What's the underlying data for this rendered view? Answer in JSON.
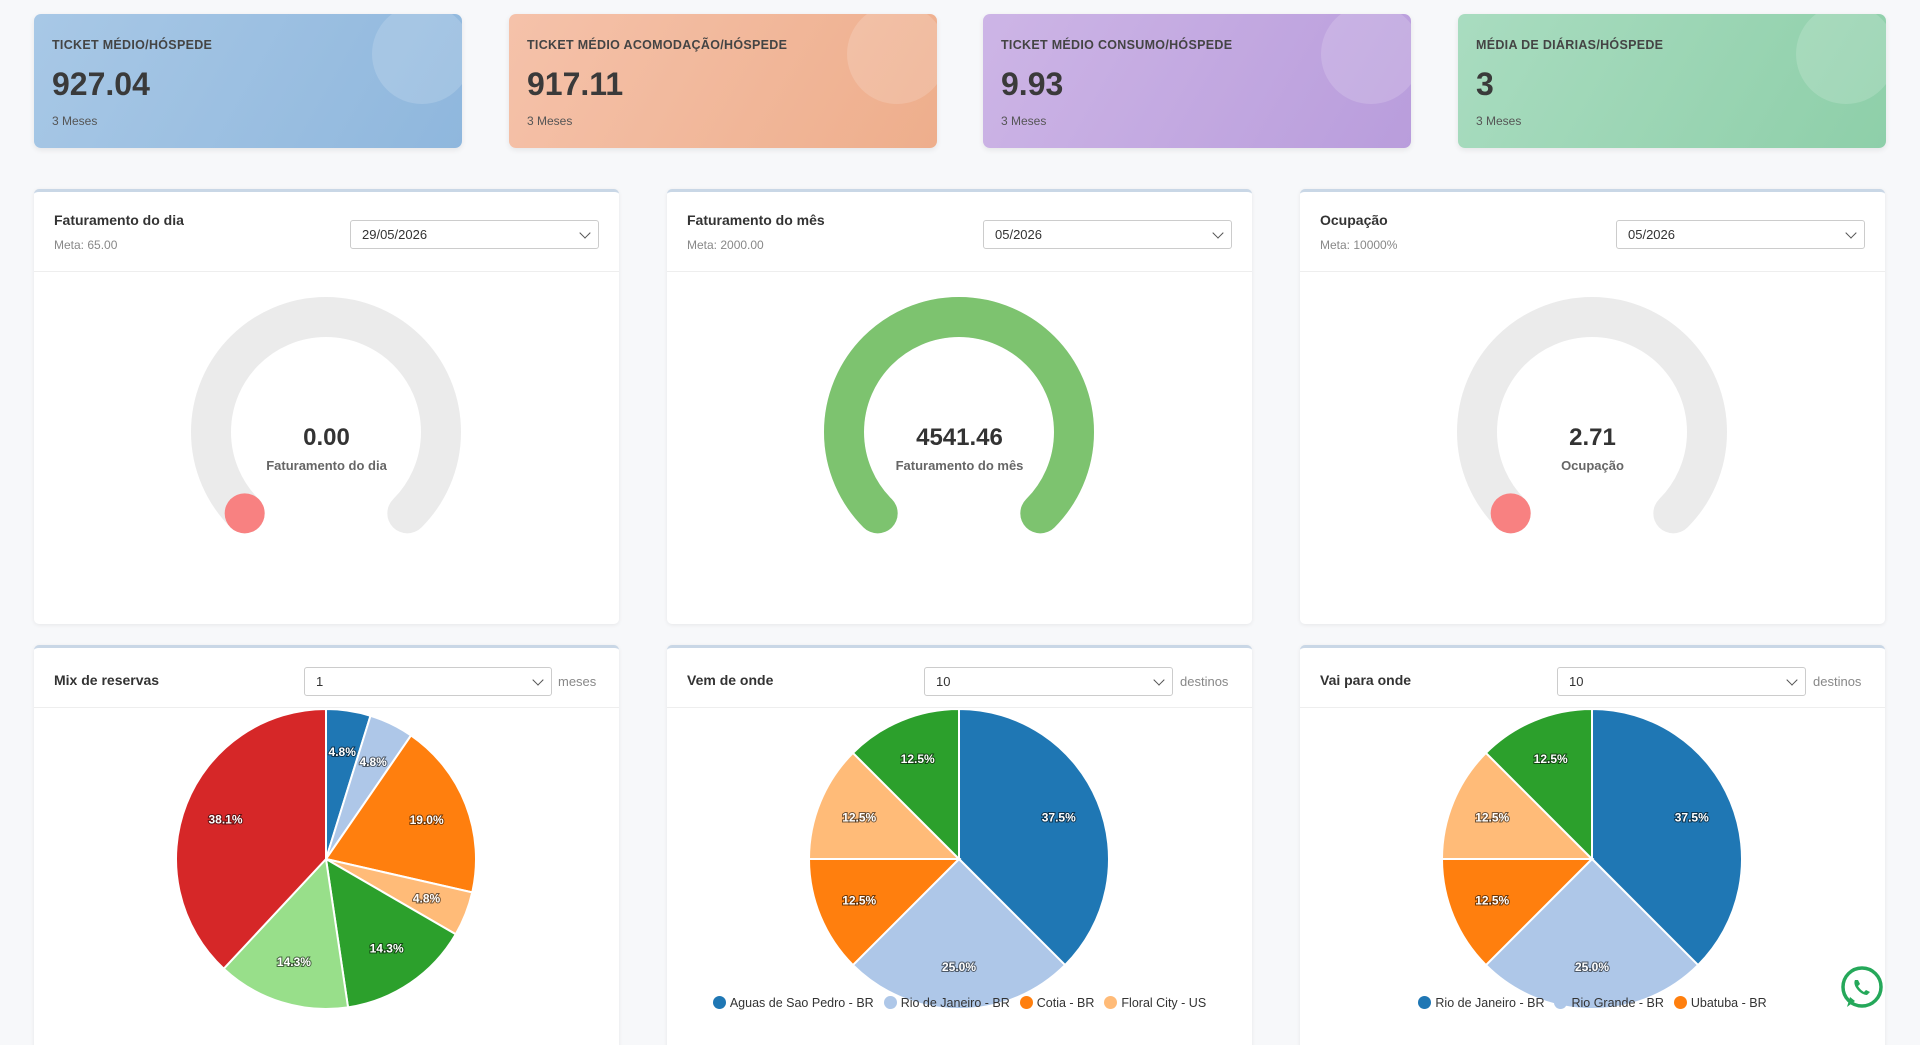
{
  "kpis": [
    {
      "title": "TICKET MÉDIO/HÓSPEDE",
      "value": "927.04",
      "sub": "3 Meses"
    },
    {
      "title": "TICKET MÉDIO ACOMODAÇÃO/HÓSPEDE",
      "value": "917.11",
      "sub": "3 Meses"
    },
    {
      "title": "TICKET MÉDIO CONSUMO/HÓSPEDE",
      "value": "9.93",
      "sub": "3 Meses"
    },
    {
      "title": "MÉDIA DE DIÁRIAS/HÓSPEDE",
      "value": "3",
      "sub": "3 Meses"
    }
  ],
  "gauges": [
    {
      "title": "Faturamento do dia",
      "meta": "Meta: 65.00",
      "select": "29/05/2026",
      "value": "0.00",
      "label": "Faturamento do dia",
      "fraction": 0,
      "color": "#f88181"
    },
    {
      "title": "Faturamento do mês",
      "meta": "Meta: 2000.00",
      "select": "05/2026",
      "value": "4541.46",
      "label": "Faturamento do mês",
      "fraction": 1,
      "color": "#7dc36f"
    },
    {
      "title": "Ocupação",
      "meta": "Meta: 10000%",
      "select": "05/2026",
      "value": "2.71",
      "label": "Ocupação",
      "fraction": 0,
      "color": "#f88181"
    }
  ],
  "pies": [
    {
      "title": "Mix de reservas",
      "select": "1",
      "unit": "meses"
    },
    {
      "title": "Vem de onde",
      "select": "10",
      "unit": "destinos"
    },
    {
      "title": "Vai para onde",
      "select": "10",
      "unit": "destinos"
    }
  ],
  "chart_data": [
    {
      "type": "pie",
      "values": [
        4.8,
        4.8,
        19.0,
        4.8,
        14.3,
        14.3,
        38.1
      ],
      "labels": [
        "4.8%",
        "4.8%",
        "19.0%",
        "4.8%",
        "14.3%",
        "14.3%",
        "38.1%"
      ],
      "colors": [
        "#1f77b4",
        "#aec7e8",
        "#ff7f0e",
        "#ffbb78",
        "#2ca02c",
        "#98df8a",
        "#d62728"
      ],
      "legend": []
    },
    {
      "type": "pie",
      "values": [
        37.5,
        25.0,
        12.5,
        12.5,
        12.5
      ],
      "labels": [
        "37.5%",
        "25.0%",
        "12.5%",
        "12.5%",
        "12.5%"
      ],
      "colors": [
        "#1f77b4",
        "#aec7e8",
        "#ff7f0e",
        "#ffbb78",
        "#2ca02c"
      ],
      "legend": [
        "Aguas de Sao Pedro - BR",
        "Rio de Janeiro - BR",
        "Cotia - BR",
        "Floral City - US"
      ]
    },
    {
      "type": "pie",
      "values": [
        37.5,
        25.0,
        12.5,
        12.5,
        12.5
      ],
      "labels": [
        "37.5%",
        "25.0%",
        "12.5%",
        "12.5%",
        "12.5%"
      ],
      "colors": [
        "#1f77b4",
        "#aec7e8",
        "#ff7f0e",
        "#ffbb78",
        "#2ca02c"
      ],
      "legend": [
        "Rio de Janeiro - BR",
        "Rio Grande - BR",
        "Ubatuba - BR"
      ]
    }
  ],
  "icons": {
    "whatsapp": "whatsapp-icon"
  }
}
